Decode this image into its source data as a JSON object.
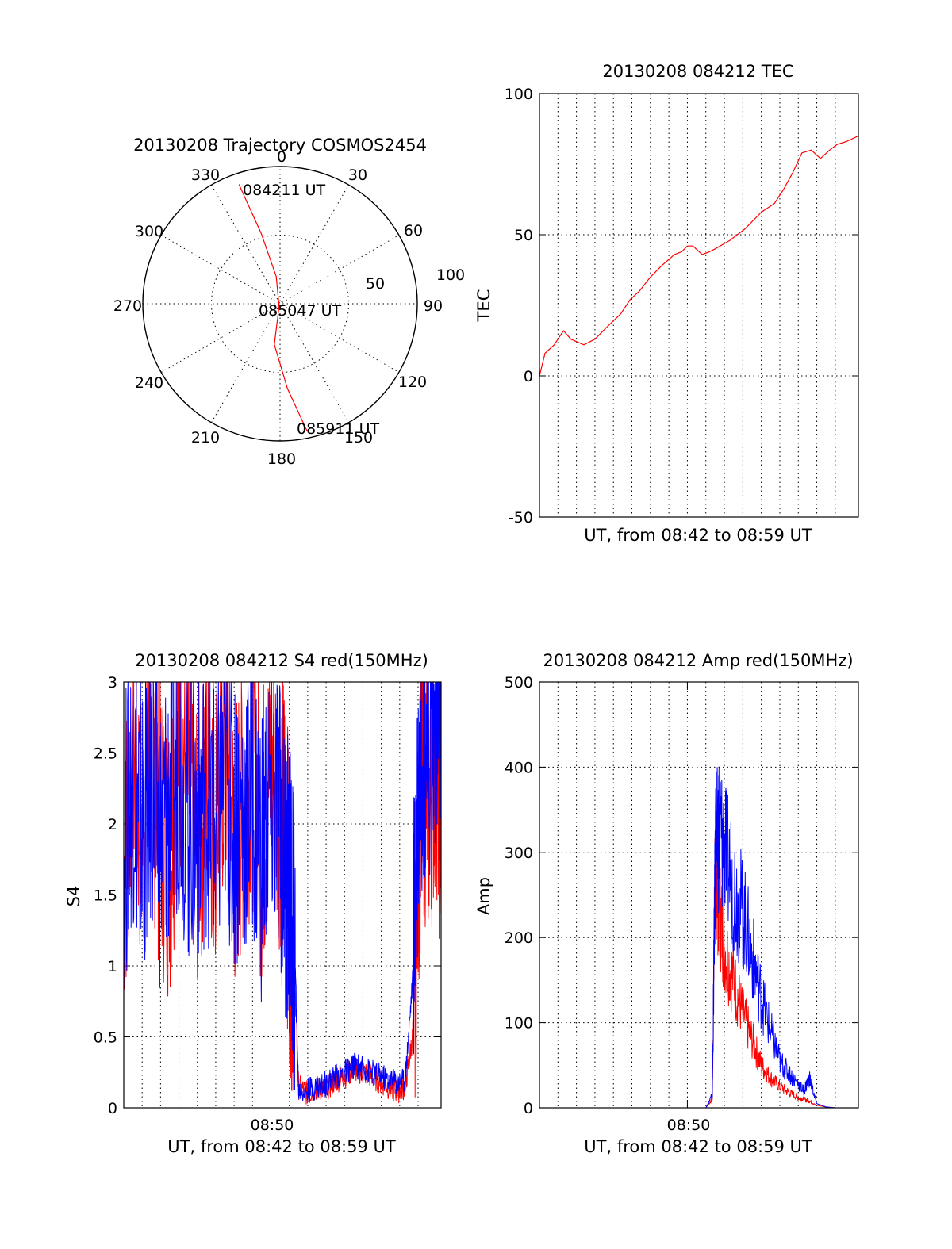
{
  "chart_data": [
    {
      "type": "polar",
      "title": "20130208 Trajectory COSMOS2454",
      "azimuth_labels": [
        "0",
        "30",
        "60",
        "90",
        "120",
        "150",
        "180",
        "210",
        "240",
        "270",
        "300",
        "330"
      ],
      "radial_labels": [
        "50",
        "100"
      ],
      "radial_max": 100,
      "grid": true,
      "series": [
        {
          "color": "#ff0000",
          "az_deg": [
            341,
            345,
            352,
            200,
            188,
            175,
            168
          ],
          "r": [
            92,
            53,
            20,
            2,
            30,
            62,
            95
          ]
        }
      ],
      "annotations": [
        "084211 UT",
        "085047 UT",
        "085911 UT"
      ]
    },
    {
      "type": "line",
      "title": "20130208 084212 TEC",
      "xlabel": "UT, from 08:42 to 08:59 UT",
      "ylabel": "TEC",
      "xlim": [
        0,
        17.25
      ],
      "ylim": [
        -50,
        100
      ],
      "ytick_labels": [
        "-50",
        "0",
        "50",
        "100"
      ],
      "grid": true,
      "series": [
        {
          "color": "#ff0000",
          "x": [
            0,
            0.3,
            0.8,
            1.3,
            1.7,
            2.4,
            3.0,
            3.6,
            4.4,
            4.9,
            5.4,
            6.0,
            6.6,
            7.3,
            7.7,
            8.0,
            8.3,
            8.8,
            9.2,
            9.5,
            10.3,
            11.1,
            12.0,
            12.7,
            13.2,
            13.7,
            14.2,
            14.7,
            15.2,
            15.7,
            16.1,
            16.6,
            17.25
          ],
          "y": [
            0,
            8,
            11,
            16,
            13,
            11,
            13,
            17,
            22,
            27,
            30,
            35,
            39,
            43,
            44,
            46,
            46,
            43,
            44,
            45,
            48,
            52,
            58,
            61,
            66,
            72,
            79,
            80,
            77,
            80,
            82,
            83,
            85
          ]
        }
      ]
    },
    {
      "type": "line",
      "title": "20130208 084212 S4 red(150MHz)",
      "xlabel": "UT, from 08:42 to 08:59 UT",
      "ylabel": "S4",
      "xlim": [
        0,
        17.25
      ],
      "ylim": [
        0,
        3
      ],
      "ytick_labels": [
        "0",
        "0.5",
        "1",
        "1.5",
        "2",
        "2.5",
        "3"
      ],
      "xtick_label": "08:50",
      "grid": true,
      "series": [
        {
          "color": "#ff0000",
          "x": [
            0,
            0.5,
            1.0,
            1.5,
            2.0,
            2.5,
            3.0,
            3.5,
            4.0,
            4.5,
            5.0,
            5.5,
            6.0,
            6.5,
            7.0,
            7.5,
            8.0,
            8.5,
            8.8,
            9.0,
            9.3,
            9.5,
            10.0,
            10.5,
            11.0,
            11.5,
            12.0,
            12.5,
            13.0,
            13.5,
            14.0,
            14.5,
            14.9,
            15.3,
            15.7,
            16.0,
            16.3,
            16.6,
            17.0,
            17.25
          ],
          "y": [
            1.6,
            2.6,
            1.9,
            2.5,
            2.0,
            1.8,
            2.7,
            2.3,
            1.9,
            2.4,
            2.1,
            2.6,
            1.8,
            2.2,
            2.5,
            1.9,
            2.4,
            2.2,
            1.9,
            1.4,
            0.9,
            0.15,
            0.1,
            0.14,
            0.13,
            0.19,
            0.22,
            0.27,
            0.25,
            0.22,
            0.18,
            0.14,
            0.12,
            0.15,
            0.5,
            1.9,
            2.4,
            2.2,
            2.6,
            2.0
          ]
        },
        {
          "color": "#0000ff",
          "x": [
            0,
            0.5,
            1.0,
            1.5,
            2.0,
            2.5,
            3.0,
            3.5,
            4.0,
            4.5,
            5.0,
            5.5,
            6.0,
            6.5,
            7.0,
            7.5,
            8.0,
            8.5,
            8.8,
            9.0,
            9.3,
            9.5,
            10.0,
            10.5,
            11.0,
            11.5,
            12.0,
            12.5,
            13.0,
            13.5,
            14.0,
            14.5,
            14.9,
            15.3,
            15.7,
            16.0,
            16.3,
            16.6,
            17.0,
            17.25
          ],
          "y": [
            1.8,
            2.4,
            2.0,
            2.3,
            1.9,
            2.2,
            2.5,
            2.1,
            2.0,
            2.3,
            1.9,
            2.4,
            2.0,
            2.1,
            2.3,
            1.8,
            2.2,
            2.0,
            1.7,
            1.5,
            1.1,
            0.12,
            0.12,
            0.15,
            0.17,
            0.22,
            0.25,
            0.3,
            0.28,
            0.25,
            0.22,
            0.2,
            0.18,
            0.2,
            0.9,
            2.3,
            2.7,
            2.6,
            2.8,
            2.4
          ]
        }
      ]
    },
    {
      "type": "line",
      "title": "20130208 084212 Amp red(150MHz)",
      "xlabel": "UT, from 08:42 to 08:59 UT",
      "ylabel": "Amp",
      "xlim": [
        0,
        17.25
      ],
      "ylim": [
        0,
        500
      ],
      "ytick_labels": [
        "0",
        "100",
        "200",
        "300",
        "400",
        "500"
      ],
      "xtick_label": "08:50",
      "grid": true,
      "series": [
        {
          "color": "#ff0000",
          "x": [
            0,
            9.0,
            9.35,
            9.5,
            9.7,
            10.0,
            10.5,
            11.0,
            11.5,
            12.0,
            12.5,
            13.0,
            13.5,
            14.0,
            14.3,
            14.6,
            15.0,
            15.5,
            16.0,
            17.25
          ],
          "y": [
            0,
            0,
            10,
            300,
            240,
            190,
            150,
            110,
            80,
            50,
            35,
            25,
            18,
            12,
            10,
            8,
            3,
            1,
            0,
            0
          ]
        },
        {
          "color": "#0000ff",
          "x": [
            0,
            9.0,
            9.35,
            9.5,
            9.7,
            10.0,
            10.5,
            11.0,
            11.5,
            12.0,
            12.5,
            13.0,
            13.5,
            14.0,
            14.3,
            14.6,
            15.0,
            15.5,
            16.0,
            17.25
          ],
          "y": [
            0,
            0,
            15,
            280,
            330,
            300,
            260,
            230,
            180,
            130,
            90,
            55,
            40,
            28,
            20,
            35,
            5,
            1,
            0,
            0
          ]
        }
      ]
    }
  ]
}
